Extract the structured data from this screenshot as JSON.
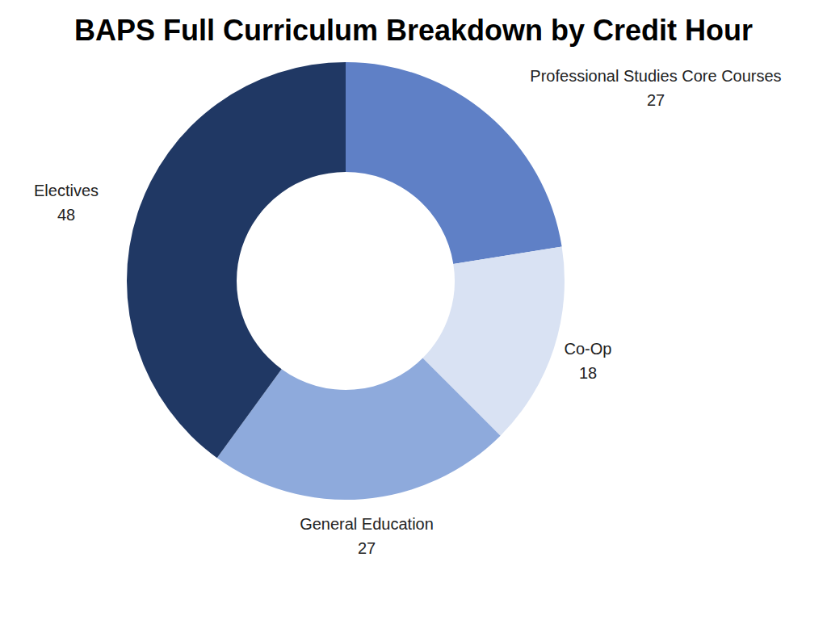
{
  "chart_data": {
    "type": "pie",
    "title": "BAPS Full Curriculum Breakdown by Credit Hour",
    "categories": [
      "Professional Studies Core Courses",
      "Co-Op",
      "General Education",
      "Electives"
    ],
    "values": [
      27,
      18,
      27,
      48
    ],
    "colors": [
      "#5f80c6",
      "#d9e2f3",
      "#8eaadc",
      "#203864"
    ]
  }
}
